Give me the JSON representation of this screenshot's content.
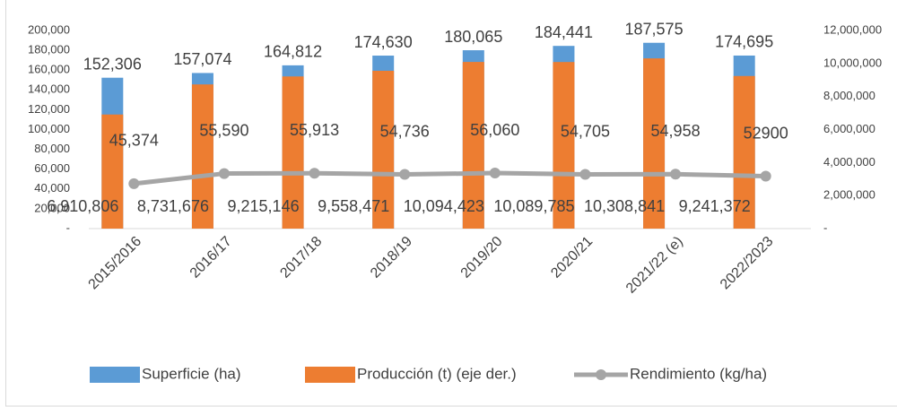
{
  "chart_data": {
    "type": "bar-line-combo",
    "categories": [
      "2015/2016",
      "2016/17",
      "2017/18",
      "2018/19",
      "2019/20",
      "2020/21",
      "2021/22 (e)",
      "2022/2023"
    ],
    "series": [
      {
        "name": "Superficie (ha)",
        "type": "bar",
        "color": "#5b9bd5",
        "values": [
          152306,
          157074,
          164812,
          174630,
          180065,
          184441,
          187575,
          174695
        ],
        "value_labels": [
          "152,306",
          "157,074",
          "164,812",
          "174,630",
          "180,065",
          "184,441",
          "187,575",
          "174,695"
        ]
      },
      {
        "name": "Producción (t) (eje der.)",
        "type": "bar",
        "axis": "y2",
        "color": "#ed7d31",
        "values": [
          6910806,
          8731676,
          9215146,
          9558471,
          10094423,
          10089785,
          10308841,
          9241372
        ],
        "value_labels": [
          "6,910,806",
          "8,731,676",
          "9,215,146",
          "9,558,471",
          "10,094,423",
          "10,089,785",
          "10,308,841",
          "9,241,372"
        ]
      },
      {
        "name": "Rendimiento (kg/ha)",
        "type": "line",
        "color": "#a5a5a5",
        "values": [
          45374,
          55590,
          55913,
          54736,
          56060,
          54705,
          54958,
          52900
        ],
        "value_labels": [
          "45,374",
          "55,590",
          "55,913",
          "54,736",
          "56,060",
          "54,705",
          "54,958",
          "52900"
        ]
      }
    ],
    "ylim": [
      0,
      200000
    ],
    "yticks": [
      {
        "value": 0,
        "label": "-"
      },
      {
        "value": 20000,
        "label": "20,000"
      },
      {
        "value": 40000,
        "label": "40,000"
      },
      {
        "value": 60000,
        "label": "60,000"
      },
      {
        "value": 80000,
        "label": "80,000"
      },
      {
        "value": 100000,
        "label": "100,000"
      },
      {
        "value": 120000,
        "label": "120,000"
      },
      {
        "value": 140000,
        "label": "140,000"
      },
      {
        "value": 160000,
        "label": "160,000"
      },
      {
        "value": 180000,
        "label": "180,000"
      },
      {
        "value": 200000,
        "label": "200,000"
      }
    ],
    "y2lim": [
      0,
      12000000
    ],
    "y2ticks": [
      {
        "value": 0,
        "label": "-"
      },
      {
        "value": 2000000,
        "label": "2,000,000"
      },
      {
        "value": 4000000,
        "label": "4,000,000"
      },
      {
        "value": 6000000,
        "label": "6,000,000"
      },
      {
        "value": 8000000,
        "label": "8,000,000"
      },
      {
        "value": 10000000,
        "label": "10,000,000"
      },
      {
        "value": 12000000,
        "label": "12,000,000"
      }
    ],
    "legend": "bottom"
  }
}
